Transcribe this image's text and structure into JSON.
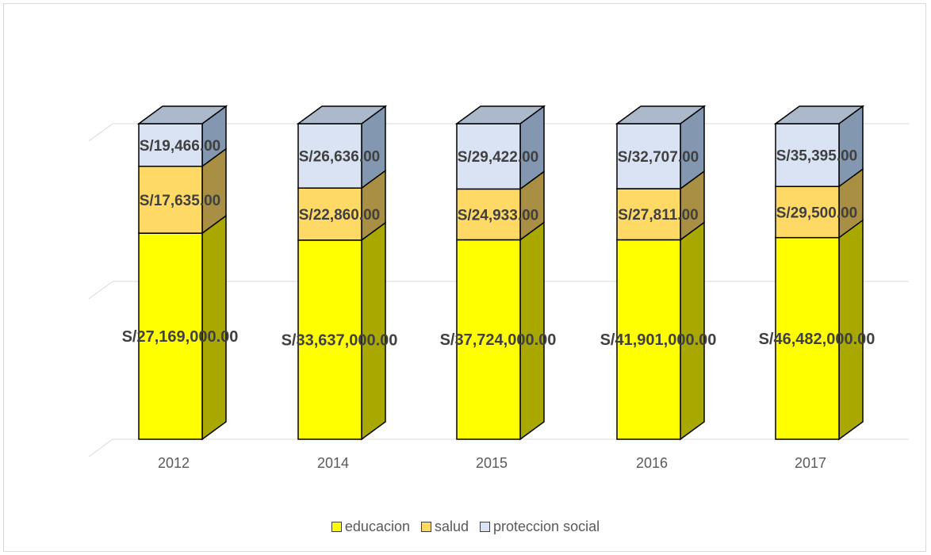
{
  "chart_data": {
    "type": "bar",
    "stacked": true,
    "style": "3d-column",
    "categories": [
      "2012",
      "2014",
      "2015",
      "2016",
      "2017"
    ],
    "series": [
      {
        "name": "educacion",
        "color": "#ffff00",
        "values": [
          27169000,
          33637000,
          37724000,
          41901000,
          46482000
        ],
        "labels": [
          "S/27,169,000.00",
          "S/33,637,000.00",
          "S/37,724,000.00",
          "S/41,901,000.00",
          "S/46,482,000.00"
        ]
      },
      {
        "name": "salud",
        "color": "#ffd966",
        "values": [
          17635,
          22860,
          24933,
          27811,
          29500
        ],
        "labels": [
          "S/17,635.00",
          "S/22,860.00",
          "S/24,933.00",
          "S/27,811.00",
          "S/29,500.00"
        ]
      },
      {
        "name": "proteccion social",
        "color": "#dae3f3",
        "values": [
          19466,
          26636,
          29422,
          32707,
          35395
        ],
        "labels": [
          "S/19,466.00",
          "S/26,636.00",
          "S/29,422.00",
          "S/32,707.00",
          "S/35,395.00"
        ]
      }
    ],
    "segment_shares": [
      [
        0.653,
        0.212,
        0.135
      ],
      [
        0.631,
        0.165,
        0.204
      ],
      [
        0.632,
        0.161,
        0.207
      ],
      [
        0.632,
        0.162,
        0.206
      ],
      [
        0.639,
        0.162,
        0.199
      ]
    ],
    "title": "",
    "xlabel": "",
    "ylabel": "",
    "grid": true,
    "legend_position": "bottom",
    "colors": {
      "edge": "#000000",
      "gridline": "#d9d9d9",
      "tick_label": "#595959",
      "data_label": "#404040"
    }
  }
}
